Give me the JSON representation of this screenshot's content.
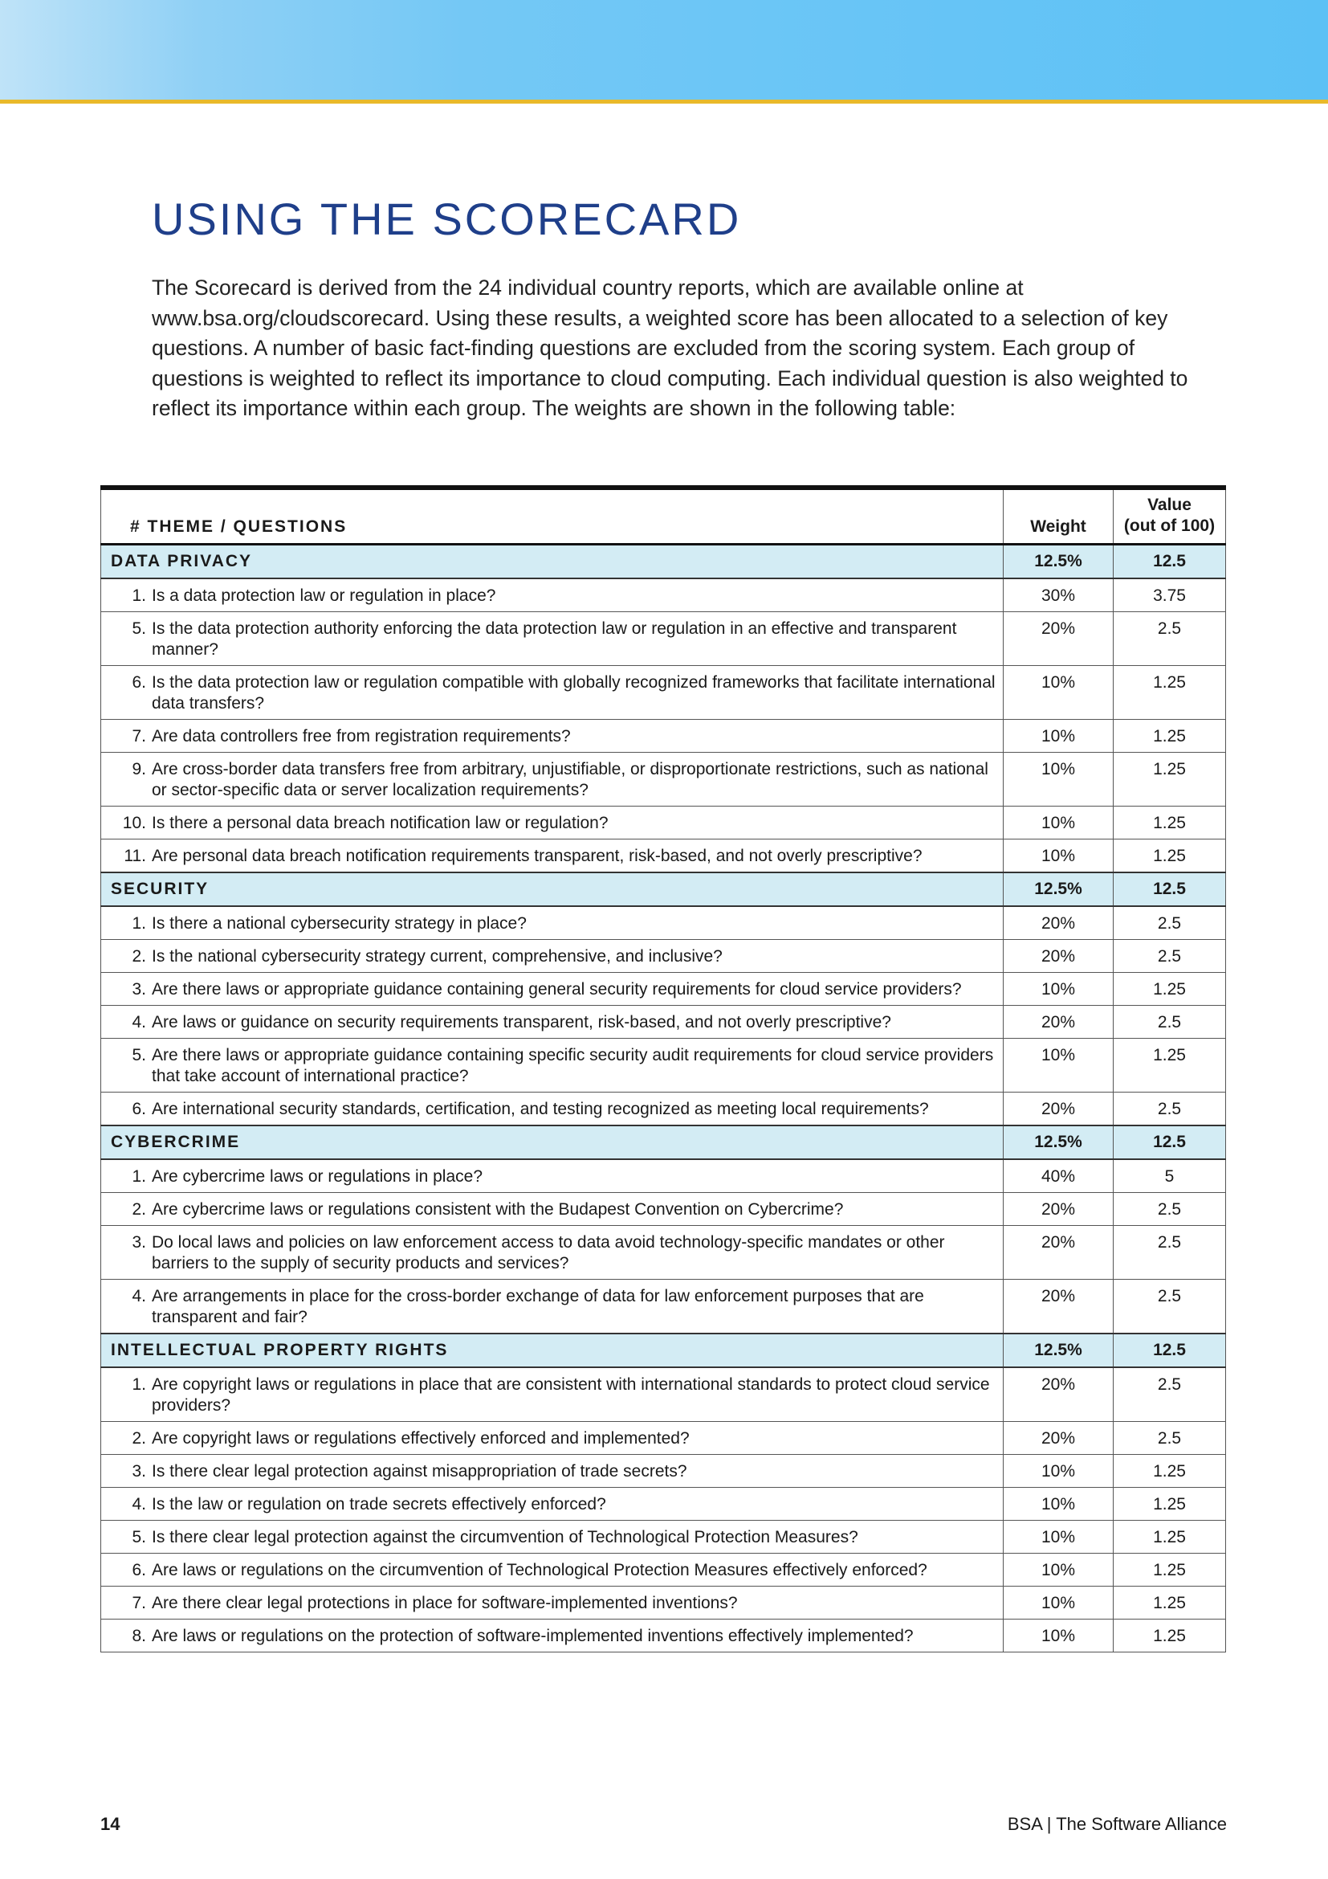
{
  "page": {
    "title": "USING THE SCORECARD",
    "intro": "The Scorecard is derived from the 24 individual country reports, which are available online at www.bsa.org/cloudscorecard. Using these results, a weighted score has been allocated to a selection of key questions. A number of basic fact-finding questions are excluded from the scoring system. Each group of questions is weighted to reflect its importance to cloud computing. Each individual question is also weighted to reflect its importance within each group. The weights are shown in the following table:",
    "page_number": "14",
    "footer_brand": "BSA | The Software Alliance"
  },
  "colors": {
    "banner": "#6cc6f6",
    "rule": "#e9b92a",
    "title": "#1f3f8a",
    "section_bg": "#d3ecf4"
  },
  "table": {
    "headers": {
      "question": "# THEME / QUESTIONS",
      "weight": "Weight",
      "value_line1": "Value",
      "value_line2": "(out of 100)"
    },
    "sections": [
      {
        "name": "DATA PRIVACY",
        "weight": "12.5%",
        "value": "12.5",
        "items": [
          {
            "n": "1.",
            "q": "Is a data protection law or regulation in place?",
            "w": "30%",
            "v": "3.75"
          },
          {
            "n": "5.",
            "q": "Is the data protection authority enforcing the data protection law or regulation in an effective and transparent manner?",
            "w": "20%",
            "v": "2.5"
          },
          {
            "n": "6.",
            "q": "Is the data protection law or regulation compatible with globally recognized frameworks that facilitate international data transfers?",
            "w": "10%",
            "v": "1.25"
          },
          {
            "n": "7.",
            "q": "Are data controllers free from registration requirements?",
            "w": "10%",
            "v": "1.25"
          },
          {
            "n": "9.",
            "q": "Are cross-border data transfers free from arbitrary, unjustifiable, or disproportionate restrictions, such as national or sector-specific data or server localization requirements?",
            "w": "10%",
            "v": "1.25"
          },
          {
            "n": "10.",
            "q": "Is there a personal data breach notification law or regulation?",
            "w": "10%",
            "v": "1.25"
          },
          {
            "n": "11.",
            "q": "Are personal data breach notification requirements transparent, risk-based, and not overly prescriptive?",
            "w": "10%",
            "v": "1.25"
          }
        ]
      },
      {
        "name": "SECURITY",
        "weight": "12.5%",
        "value": "12.5",
        "items": [
          {
            "n": "1.",
            "q": "Is there a national cybersecurity strategy in place?",
            "w": "20%",
            "v": "2.5"
          },
          {
            "n": "2.",
            "q": "Is the national cybersecurity strategy current, comprehensive, and inclusive?",
            "w": "20%",
            "v": "2.5"
          },
          {
            "n": "3.",
            "q": "Are there laws or appropriate guidance containing general security requirements for cloud service providers?",
            "w": "10%",
            "v": "1.25"
          },
          {
            "n": "4.",
            "q": "Are laws or guidance on security requirements transparent, risk-based, and not overly prescriptive?",
            "w": "20%",
            "v": "2.5"
          },
          {
            "n": "5.",
            "q": "Are there laws or appropriate guidance containing specific security audit requirements for cloud service providers that take account of international practice?",
            "w": "10%",
            "v": "1.25"
          },
          {
            "n": "6.",
            "q": "Are international security standards, certification, and testing recognized as meeting local requirements?",
            "w": "20%",
            "v": "2.5"
          }
        ]
      },
      {
        "name": "CYBERCRIME",
        "weight": "12.5%",
        "value": "12.5",
        "items": [
          {
            "n": "1.",
            "q": "Are cybercrime laws or regulations in place?",
            "w": "40%",
            "v": "5"
          },
          {
            "n": "2.",
            "q": "Are cybercrime laws or regulations consistent with the Budapest Convention on Cybercrime?",
            "w": "20%",
            "v": "2.5"
          },
          {
            "n": "3.",
            "q": "Do local laws and policies on law enforcement access to data avoid technology-specific mandates or other barriers to the supply of security products and services?",
            "w": "20%",
            "v": "2.5"
          },
          {
            "n": "4.",
            "q": "Are arrangements in place for the cross-border exchange of data for law enforcement purposes that are transparent and fair?",
            "w": "20%",
            "v": "2.5"
          }
        ]
      },
      {
        "name": "INTELLECTUAL PROPERTY RIGHTS",
        "weight": "12.5%",
        "value": "12.5",
        "items": [
          {
            "n": "1.",
            "q": "Are copyright laws or regulations in place that are consistent with international standards to protect cloud service providers?",
            "w": "20%",
            "v": "2.5"
          },
          {
            "n": "2.",
            "q": "Are copyright laws or regulations effectively enforced and implemented?",
            "w": "20%",
            "v": "2.5"
          },
          {
            "n": "3.",
            "q": "Is there clear legal protection against misappropriation of trade secrets?",
            "w": "10%",
            "v": "1.25"
          },
          {
            "n": "4.",
            "q": "Is the law or regulation on trade secrets effectively enforced?",
            "w": "10%",
            "v": "1.25"
          },
          {
            "n": "5.",
            "q": "Is there clear legal protection against the circumvention of Technological Protection Measures?",
            "w": "10%",
            "v": "1.25"
          },
          {
            "n": "6.",
            "q": "Are laws or regulations on the circumvention of Technological Protection Measures effectively enforced?",
            "w": "10%",
            "v": "1.25"
          },
          {
            "n": "7.",
            "q": "Are there clear legal protections in place for software-implemented inventions?",
            "w": "10%",
            "v": "1.25"
          },
          {
            "n": "8.",
            "q": "Are laws or regulations on the protection of software-implemented inventions effectively implemented?",
            "w": "10%",
            "v": "1.25"
          }
        ]
      }
    ]
  }
}
